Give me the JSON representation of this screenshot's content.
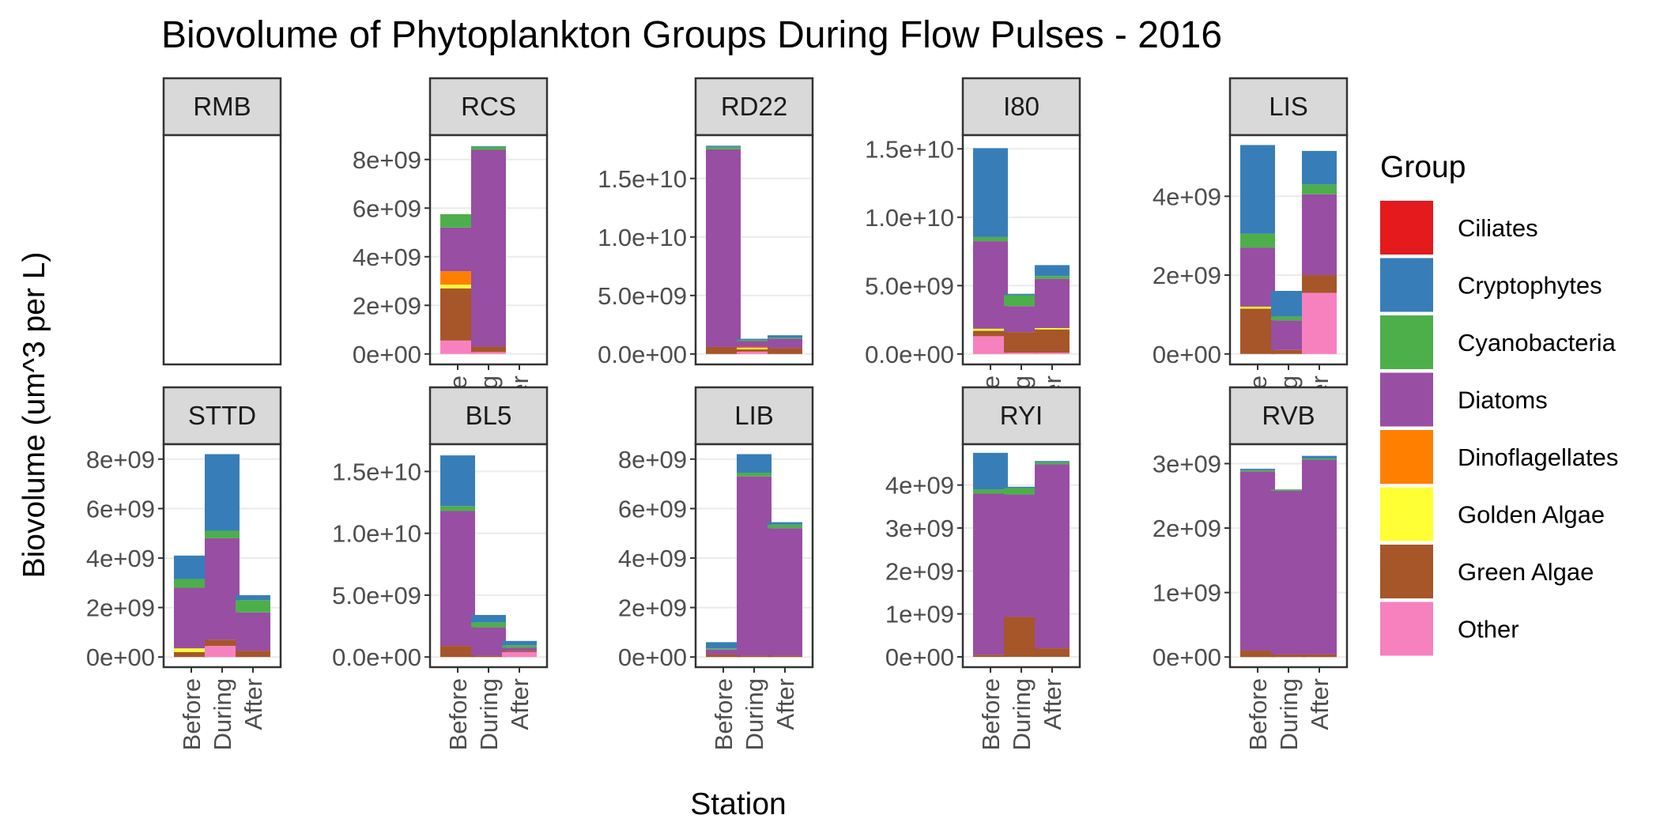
{
  "chart_data": {
    "type": "bar",
    "title": "Biovolume of Phytoplankton Groups During Flow Pulses - 2016",
    "xlabel": "Station",
    "ylabel": "Biovolume (um^3 per L)",
    "legend": {
      "title": "Group",
      "position": "right",
      "entries": [
        {
          "name": "Ciliates",
          "color": "#E41A1C"
        },
        {
          "name": "Cryptophytes",
          "color": "#377EB8"
        },
        {
          "name": "Cyanobacteria",
          "color": "#4DAF4A"
        },
        {
          "name": "Diatoms",
          "color": "#984EA3"
        },
        {
          "name": "Dinoflagellates",
          "color": "#FF7F00"
        },
        {
          "name": "Golden Algae",
          "color": "#FFFF33"
        },
        {
          "name": "Green Algae",
          "color": "#A65628"
        },
        {
          "name": "Other",
          "color": "#F781BF"
        }
      ]
    },
    "stack_order_bottom_to_top": [
      "Other",
      "Green Algae",
      "Golden Algae",
      "Dinoflagellates",
      "Diatoms",
      "Cyanobacteria",
      "Cryptophytes",
      "Ciliates"
    ],
    "categories": [
      "Before",
      "During",
      "After"
    ],
    "grid": true,
    "facets": [
      {
        "station": "RMB",
        "ticks": [],
        "ylim": [
          0,
          1
        ],
        "bars": []
      },
      {
        "station": "RCS",
        "ticks": [
          0,
          2000000000.0,
          4000000000.0,
          6000000000.0,
          8000000000.0
        ],
        "tick_labels": [
          "0e+00",
          "2e+09",
          "4e+09",
          "6e+09",
          "8e+09"
        ],
        "ylim": [
          -430000000.0,
          9000000000.0
        ],
        "x_labels": true,
        "bars": [
          {
            "category": "Before",
            "values": {
              "Other": 550000000.0,
              "Green Algae": 2150000000.0,
              "Golden Algae": 150000000.0,
              "Dinoflagellates": 550000000.0,
              "Diatoms": 1800000000.0,
              "Cyanobacteria": 550000000.0,
              "Cryptophytes": 0,
              "Ciliates": 0
            }
          },
          {
            "category": "During",
            "values": {
              "Other": 80000000.0,
              "Green Algae": 220000000.0,
              "Golden Algae": 0,
              "Dinoflagellates": 0,
              "Diatoms": 8100000000.0,
              "Cyanobacteria": 120000000.0,
              "Cryptophytes": 30000000.0,
              "Ciliates": 0
            }
          },
          {
            "category": "After",
            "values": {}
          }
        ]
      },
      {
        "station": "RD22",
        "ticks": [
          0,
          5000000000.0,
          10000000000.0,
          15000000000.0
        ],
        "tick_labels": [
          "0.0e+00",
          "5.0e+09",
          "1.0e+10",
          "1.5e+10"
        ],
        "ylim": [
          -890000000.0,
          18700000000.0
        ],
        "x_labels": false,
        "bars": [
          {
            "category": "Before",
            "values": {
              "Other": 0,
              "Green Algae": 600000000.0,
              "Golden Algae": 0,
              "Dinoflagellates": 0,
              "Diatoms": 16900000000.0,
              "Cyanobacteria": 200000000.0,
              "Cryptophytes": 100000000.0,
              "Ciliates": 0
            }
          },
          {
            "category": "During",
            "values": {
              "Other": 200000000.0,
              "Green Algae": 200000000.0,
              "Golden Algae": 100000000.0,
              "Dinoflagellates": 100000000.0,
              "Diatoms": 500000000.0,
              "Cyanobacteria": 100000000.0,
              "Cryptophytes": 100000000.0,
              "Ciliates": 0
            }
          },
          {
            "category": "After",
            "values": {
              "Other": 0,
              "Green Algae": 500000000.0,
              "Golden Algae": 0,
              "Dinoflagellates": 0,
              "Diatoms": 800000000.0,
              "Cyanobacteria": 100000000.0,
              "Cryptophytes": 200000000.0,
              "Ciliates": 0
            }
          }
        ]
      },
      {
        "station": "I80",
        "ticks": [
          0,
          5000000000.0,
          10000000000.0,
          15000000000.0
        ],
        "tick_labels": [
          "0.0e+00",
          "5.0e+09",
          "1.0e+10",
          "1.5e+10"
        ],
        "ylim": [
          -760000000.0,
          16000000000.0
        ],
        "x_labels": true,
        "bars": [
          {
            "category": "Before",
            "values": {
              "Other": 1300000000.0,
              "Green Algae": 400000000.0,
              "Golden Algae": 150000000.0,
              "Dinoflagellates": 0,
              "Diatoms": 6400000000.0,
              "Cyanobacteria": 300000000.0,
              "Cryptophytes": 6500000000.0,
              "Ciliates": 0
            }
          },
          {
            "category": "During",
            "values": {
              "Other": 100000000.0,
              "Green Algae": 1500000000.0,
              "Golden Algae": 0,
              "Dinoflagellates": 0,
              "Diatoms": 1900000000.0,
              "Cyanobacteria": 800000000.0,
              "Cryptophytes": 100000000.0,
              "Ciliates": 0
            }
          },
          {
            "category": "After",
            "values": {
              "Other": 100000000.0,
              "Green Algae": 1700000000.0,
              "Golden Algae": 100000000.0,
              "Dinoflagellates": 0,
              "Diatoms": 3600000000.0,
              "Cyanobacteria": 200000000.0,
              "Cryptophytes": 800000000.0,
              "Ciliates": 0
            }
          }
        ]
      },
      {
        "station": "LIS",
        "ticks": [
          0,
          2000000000.0,
          4000000000.0
        ],
        "tick_labels": [
          "0e+00",
          "2e+09",
          "4e+09"
        ],
        "ylim": [
          -265000000.0,
          5550000000.0
        ],
        "x_labels": true,
        "bars": [
          {
            "category": "Before",
            "values": {
              "Other": 0,
              "Green Algae": 1150000000.0,
              "Golden Algae": 50000000.0,
              "Dinoflagellates": 0,
              "Diatoms": 1500000000.0,
              "Cyanobacteria": 350000000.0,
              "Cryptophytes": 2250000000.0,
              "Ciliates": 0
            }
          },
          {
            "category": "During",
            "values": {
              "Other": 0,
              "Green Algae": 100000000.0,
              "Golden Algae": 0,
              "Dinoflagellates": 0,
              "Diatoms": 750000000.0,
              "Cyanobacteria": 100000000.0,
              "Cryptophytes": 650000000.0,
              "Ciliates": 0
            }
          },
          {
            "category": "After",
            "values": {
              "Other": 1550000000.0,
              "Green Algae": 450000000.0,
              "Golden Algae": 0,
              "Dinoflagellates": 0,
              "Diatoms": 2050000000.0,
              "Cyanobacteria": 250000000.0,
              "Cryptophytes": 850000000.0,
              "Ciliates": 0
            }
          }
        ]
      },
      {
        "station": "STTD",
        "ticks": [
          0,
          2000000000.0,
          4000000000.0,
          6000000000.0,
          8000000000.0
        ],
        "tick_labels": [
          "0e+00",
          "2e+09",
          "4e+09",
          "6e+09",
          "8e+09"
        ],
        "ylim": [
          -410000000.0,
          8600000000.0
        ],
        "x_labels": true,
        "bars": [
          {
            "category": "Before",
            "values": {
              "Other": 0,
              "Green Algae": 200000000.0,
              "Golden Algae": 150000000.0,
              "Dinoflagellates": 0,
              "Diatoms": 2450000000.0,
              "Cyanobacteria": 350000000.0,
              "Cryptophytes": 950000000.0,
              "Ciliates": 0
            }
          },
          {
            "category": "During",
            "values": {
              "Other": 450000000.0,
              "Green Algae": 250000000.0,
              "Golden Algae": 0,
              "Dinoflagellates": 0,
              "Diatoms": 4100000000.0,
              "Cyanobacteria": 300000000.0,
              "Cryptophytes": 3100000000.0,
              "Ciliates": 0
            }
          },
          {
            "category": "After",
            "values": {
              "Other": 0,
              "Green Algae": 250000000.0,
              "Golden Algae": 0,
              "Dinoflagellates": 0,
              "Diatoms": 1550000000.0,
              "Cyanobacteria": 500000000.0,
              "Cryptophytes": 200000000.0,
              "Ciliates": 0
            }
          }
        ]
      },
      {
        "station": "BL5",
        "ticks": [
          0,
          5000000000.0,
          10000000000.0,
          15000000000.0
        ],
        "tick_labels": [
          "0.0e+00",
          "5.0e+09",
          "1.0e+10",
          "1.5e+10"
        ],
        "ylim": [
          -820000000.0,
          17200000000.0
        ],
        "x_labels": true,
        "bars": [
          {
            "category": "Before",
            "values": {
              "Other": 0,
              "Green Algae": 900000000.0,
              "Golden Algae": 0,
              "Dinoflagellates": 0,
              "Diatoms": 10900000000.0,
              "Cyanobacteria": 400000000.0,
              "Cryptophytes": 4100000000.0,
              "Ciliates": 0
            }
          },
          {
            "category": "During",
            "values": {
              "Other": 0,
              "Green Algae": 100000000.0,
              "Golden Algae": 0,
              "Dinoflagellates": 0,
              "Diatoms": 2300000000.0,
              "Cyanobacteria": 400000000.0,
              "Cryptophytes": 600000000.0,
              "Ciliates": 0
            }
          },
          {
            "category": "After",
            "values": {
              "Other": 400000000.0,
              "Green Algae": 100000000.0,
              "Golden Algae": 0,
              "Dinoflagellates": 0,
              "Diatoms": 250000000.0,
              "Cyanobacteria": 200000000.0,
              "Cryptophytes": 350000000.0,
              "Ciliates": 0
            }
          }
        ]
      },
      {
        "station": "LIB",
        "ticks": [
          0,
          2000000000.0,
          4000000000.0,
          6000000000.0,
          8000000000.0
        ],
        "tick_labels": [
          "0e+00",
          "2e+09",
          "4e+09",
          "6e+09",
          "8e+09"
        ],
        "ylim": [
          -410000000.0,
          8600000000.0
        ],
        "x_labels": true,
        "bars": [
          {
            "category": "Before",
            "values": {
              "Other": 0,
              "Green Algae": 100000000.0,
              "Golden Algae": 0,
              "Dinoflagellates": 0,
              "Diatoms": 200000000.0,
              "Cyanobacteria": 50000000.0,
              "Cryptophytes": 250000000.0,
              "Ciliates": 0
            }
          },
          {
            "category": "During",
            "values": {
              "Other": 0,
              "Green Algae": 50000000.0,
              "Golden Algae": 0,
              "Dinoflagellates": 0,
              "Diatoms": 7250000000.0,
              "Cyanobacteria": 150000000.0,
              "Cryptophytes": 750000000.0,
              "Ciliates": 0
            }
          },
          {
            "category": "After",
            "values": {
              "Other": 0,
              "Green Algae": 50000000.0,
              "Golden Algae": 0,
              "Dinoflagellates": 0,
              "Diatoms": 5150000000.0,
              "Cyanobacteria": 150000000.0,
              "Cryptophytes": 100000000.0,
              "Ciliates": 0
            }
          }
        ]
      },
      {
        "station": "RYI",
        "ticks": [
          0,
          1000000000.0,
          2000000000.0,
          3000000000.0,
          4000000000.0
        ],
        "tick_labels": [
          "0e+00",
          "1e+09",
          "2e+09",
          "3e+09",
          "4e+09"
        ],
        "ylim": [
          -240000000.0,
          4950000000.0
        ],
        "x_labels": true,
        "bars": [
          {
            "category": "Before",
            "values": {
              "Other": 0,
              "Green Algae": 50000000.0,
              "Golden Algae": 0,
              "Dinoflagellates": 0,
              "Diatoms": 3750000000.0,
              "Cyanobacteria": 100000000.0,
              "Cryptophytes": 850000000.0,
              "Ciliates": 0
            }
          },
          {
            "category": "During",
            "values": {
              "Other": 0,
              "Green Algae": 930000000.0,
              "Golden Algae": 0,
              "Dinoflagellates": 0,
              "Diatoms": 2850000000.0,
              "Cyanobacteria": 150000000.0,
              "Cryptophytes": 30000000.0,
              "Ciliates": 0
            }
          },
          {
            "category": "After",
            "values": {
              "Other": 0,
              "Green Algae": 200000000.0,
              "Golden Algae": 0,
              "Dinoflagellates": 0,
              "Diatoms": 4280000000.0,
              "Cyanobacteria": 50000000.0,
              "Cryptophytes": 30000000.0,
              "Ciliates": 0
            }
          }
        ]
      },
      {
        "station": "RVB",
        "ticks": [
          0,
          1000000000.0,
          2000000000.0,
          3000000000.0
        ],
        "tick_labels": [
          "0e+00",
          "1e+09",
          "2e+09",
          "3e+09"
        ],
        "ylim": [
          -157000000.0,
          3300000000.0
        ],
        "x_labels": true,
        "bars": [
          {
            "category": "Before",
            "values": {
              "Other": 0,
              "Green Algae": 100000000.0,
              "Golden Algae": 0,
              "Dinoflagellates": 0,
              "Diatoms": 2780000000.0,
              "Cyanobacteria": 20000000.0,
              "Cryptophytes": 20000000.0,
              "Ciliates": 0
            }
          },
          {
            "category": "During",
            "values": {
              "Other": 0,
              "Green Algae": 40000000.0,
              "Golden Algae": 0,
              "Dinoflagellates": 0,
              "Diatoms": 2540000000.0,
              "Cyanobacteria": 20000000.0,
              "Cryptophytes": 0,
              "Ciliates": 0
            }
          },
          {
            "category": "After",
            "values": {
              "Other": 0,
              "Green Algae": 40000000.0,
              "Golden Algae": 0,
              "Dinoflagellates": 0,
              "Diatoms": 3020000000.0,
              "Cyanobacteria": 20000000.0,
              "Cryptophytes": 40000000.0,
              "Ciliates": 0
            }
          }
        ]
      }
    ]
  }
}
